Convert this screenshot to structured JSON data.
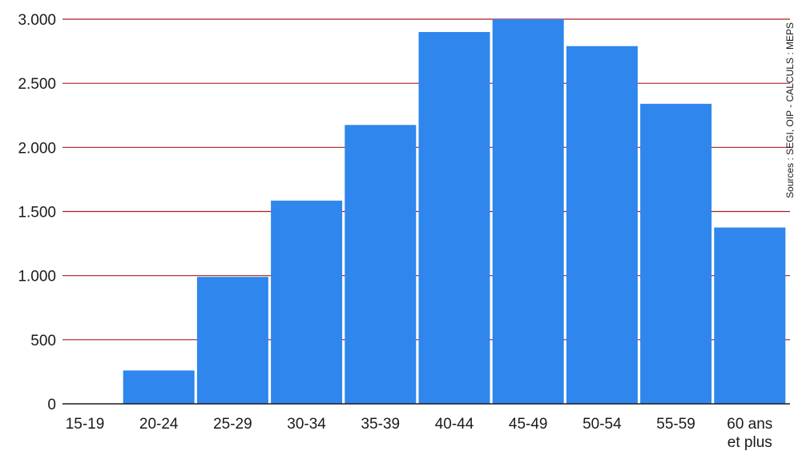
{
  "chart_data": {
    "type": "bar",
    "categories": [
      "15-19",
      "20-24",
      "25-29",
      "30-34",
      "35-39",
      "40-44",
      "45-49",
      "50-54",
      "55-59",
      "60 ans et plus"
    ],
    "category_lines": [
      [
        "15-19"
      ],
      [
        "20-24"
      ],
      [
        "25-29"
      ],
      [
        "30-34"
      ],
      [
        "35-39"
      ],
      [
        "40-44"
      ],
      [
        "45-49"
      ],
      [
        "50-54"
      ],
      [
        "55-59"
      ],
      [
        "60 ans",
        "et plus"
      ]
    ],
    "values": [
      0,
      260,
      990,
      1585,
      2175,
      2900,
      3000,
      2790,
      2340,
      1375
    ],
    "ylim": [
      0,
      3000
    ],
    "yticks": [
      0,
      500,
      1000,
      1500,
      2000,
      2500,
      3000
    ],
    "ytick_labels": [
      "0",
      "500",
      "1.000",
      "1.500",
      "2.000",
      "2.500",
      "3.000"
    ],
    "title": "",
    "xlabel": "",
    "ylabel": "",
    "grid": true,
    "source": "Sources : SEGI, OIP - CALCULS : MEPS"
  },
  "colors": {
    "bar": "#2f86ec",
    "grid": "#b01c1c",
    "axis": "#1a1a1a"
  }
}
